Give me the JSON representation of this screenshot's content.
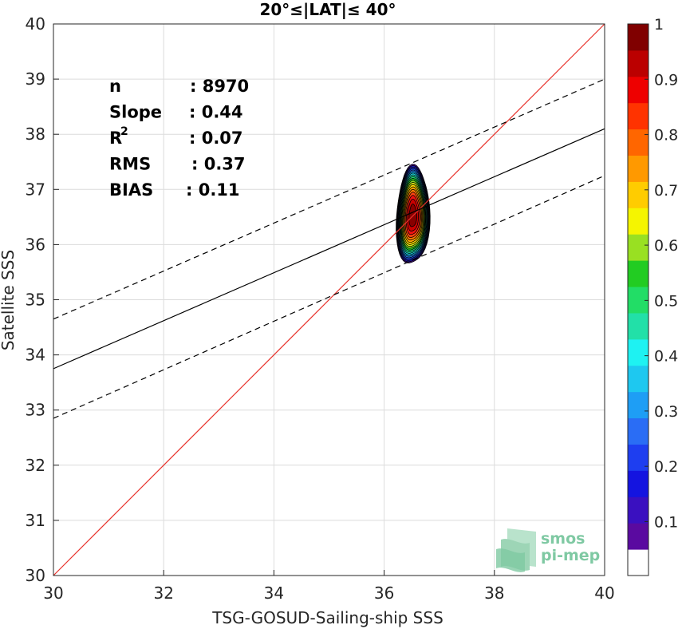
{
  "chart_data": {
    "type": "scatter",
    "title": "20°≤|LAT|≤ 40°",
    "xlabel": "TSG-GOSUD-Sailing-ship SSS",
    "ylabel": "Satellite SSS",
    "xlim": [
      30,
      40
    ],
    "ylim": [
      30,
      40
    ],
    "xticks": [
      "30",
      "32",
      "34",
      "36",
      "38",
      "40"
    ],
    "yticks": [
      "30",
      "31",
      "32",
      "33",
      "34",
      "35",
      "36",
      "37",
      "38",
      "39",
      "40"
    ],
    "grid": true,
    "stats": [
      {
        "label": "n",
        "value": ": 8970"
      },
      {
        "label": "Slope",
        "value": ": 0.44"
      },
      {
        "label": "R",
        "sup": "2",
        "value": ": 0.07"
      },
      {
        "label": "RMS",
        "value": ": 0.37"
      },
      {
        "label": "BIAS",
        "value": ": 0.11"
      }
    ],
    "lines": [
      {
        "name": "identity",
        "color": "#e8312a",
        "dashed": false,
        "points": [
          [
            30,
            30
          ],
          [
            40,
            40
          ]
        ]
      },
      {
        "name": "regression",
        "color": "#000000",
        "dashed": false,
        "points": [
          [
            30,
            33.75
          ],
          [
            40,
            38.1
          ]
        ]
      },
      {
        "name": "regression-upper",
        "color": "#000000",
        "dashed": true,
        "points": [
          [
            30,
            34.65
          ],
          [
            40,
            39.0
          ]
        ]
      },
      {
        "name": "regression-lower",
        "color": "#000000",
        "dashed": true,
        "points": [
          [
            30,
            32.85
          ],
          [
            40,
            37.25
          ]
        ]
      }
    ],
    "density": {
      "center": [
        36.52,
        36.52
      ],
      "spread": [
        0.3,
        0.95
      ],
      "levels": [
        0.05,
        0.1,
        0.15,
        0.2,
        0.25,
        0.3,
        0.35,
        0.4,
        0.45,
        0.5,
        0.55,
        0.6,
        0.65,
        0.7,
        0.75,
        0.8,
        0.85,
        0.9,
        0.95
      ],
      "fill_colors": [
        "#4b0a99",
        "#1e14c6",
        "#1e32e6",
        "#1e55f0",
        "#2a80f5",
        "#16b3f2",
        "#1fe0ee",
        "#22e0b0",
        "#22dd70",
        "#22cc22",
        "#88dd22",
        "#ddee11",
        "#ffdd00",
        "#ffaa00",
        "#ff7700",
        "#ff4411",
        "#ee1111",
        "#cc0000",
        "#880000"
      ]
    },
    "colorbar": {
      "ticks": [
        "0.1",
        "0.2",
        "0.3",
        "0.4",
        "0.5",
        "0.6",
        "0.7",
        "0.8",
        "0.9",
        "1"
      ],
      "colors": [
        "#ffffff",
        "#5a0aa0",
        "#3a10c0",
        "#1414e0",
        "#1e3ef0",
        "#2a6df5",
        "#1e9ef5",
        "#1ec8f0",
        "#1ef2f2",
        "#22e0a8",
        "#22dd66",
        "#22cc22",
        "#99e022",
        "#f5f500",
        "#ffcc00",
        "#ff9900",
        "#ff6600",
        "#ff3300",
        "#ee0000",
        "#bb0000",
        "#800000"
      ]
    },
    "logo": {
      "line1": "smos",
      "line2": "pi-mep"
    }
  }
}
